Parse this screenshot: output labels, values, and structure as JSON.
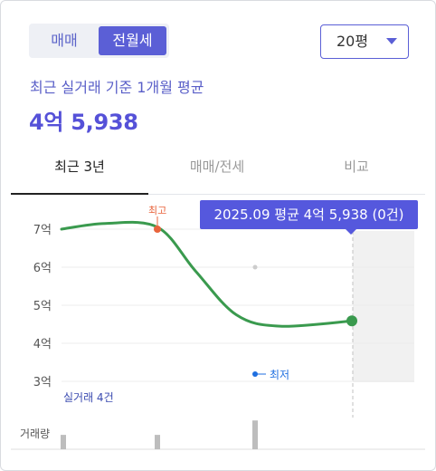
{
  "deal_type_toggle": {
    "options": [
      "매매",
      "전월세"
    ],
    "selected": "전월세"
  },
  "area_select": {
    "value": "20평"
  },
  "summary": {
    "subtitle": "최근 실거래 기준 1개월 평균",
    "price": "4억 5,938"
  },
  "tabs": [
    {
      "label": "최근 3년",
      "active": true
    },
    {
      "label": "매매/전세",
      "active": false
    },
    {
      "label": "비교",
      "active": false
    }
  ],
  "tooltip": {
    "text": "2025.09 평균 4억 5,938 (0건)"
  },
  "colors": {
    "accent": "#5558dd",
    "line": "#3a9a4e",
    "high": "#e8643c",
    "low": "#1f6fe0",
    "volume": "#bdbdbd"
  },
  "chart_data": {
    "type": "line",
    "y_axis": {
      "ticks": [
        "7억",
        "6억",
        "5억",
        "4억",
        "3억"
      ],
      "range": [
        3,
        7
      ]
    },
    "series": [
      {
        "x": [
          0,
          0.15,
          0.33,
          0.46,
          0.6,
          0.75,
          1.0
        ],
        "y": [
          7.0,
          7.15,
          7.05,
          5.9,
          4.75,
          4.45,
          4.59
        ]
      }
    ],
    "markers": {
      "high_label": "최고",
      "low_label": "최저"
    },
    "trade_count_label": "실거래 4건",
    "volume_label": "거래량",
    "volume_bars": [
      3,
      3,
      6
    ]
  }
}
